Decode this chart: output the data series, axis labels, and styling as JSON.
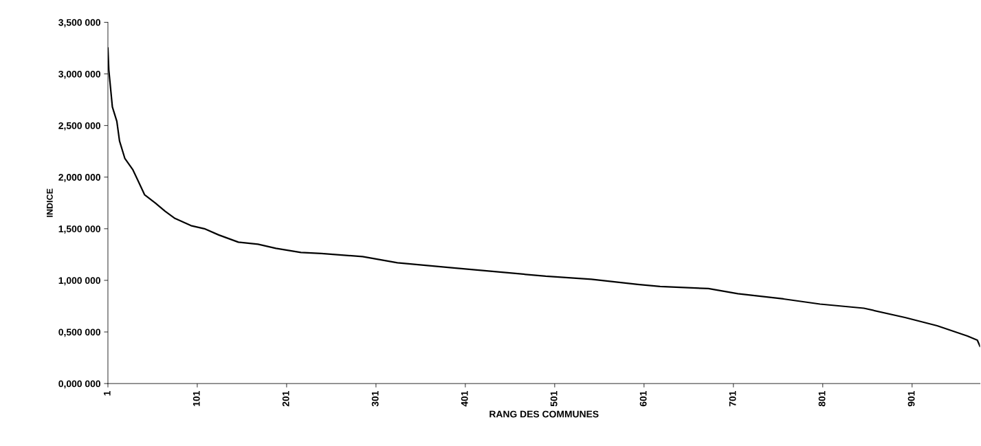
{
  "chart_data": {
    "type": "line",
    "xlabel": "RANG DES COMMUNES",
    "ylabel": "INDICE",
    "series": [
      {
        "color": "#000000",
        "x": [
          1,
          2,
          6,
          11,
          14,
          20,
          29,
          35,
          42,
          54,
          65,
          76,
          94,
          109,
          125,
          147,
          169,
          189,
          217,
          240,
          286,
          325,
          388,
          427,
          491,
          542,
          594,
          619,
          673,
          706,
          757,
          798,
          847,
          893,
          929,
          963,
          974,
          977
        ],
        "values": [
          3.25,
          3.04,
          2.68,
          2.54,
          2.35,
          2.18,
          2.07,
          1.96,
          1.83,
          1.75,
          1.67,
          1.6,
          1.53,
          1.5,
          1.44,
          1.37,
          1.35,
          1.31,
          1.27,
          1.26,
          1.23,
          1.17,
          1.12,
          1.09,
          1.04,
          1.01,
          0.96,
          0.94,
          0.92,
          0.87,
          0.82,
          0.77,
          0.73,
          0.64,
          0.56,
          0.46,
          0.42,
          0.36
        ]
      }
    ],
    "xlim": [
      1,
      977
    ],
    "xticks": [
      1,
      101,
      201,
      301,
      401,
      501,
      601,
      701,
      801,
      901
    ],
    "ylim": [
      0,
      3.5
    ],
    "yticks": [
      {
        "value": 0,
        "label": "0,000 000"
      },
      {
        "value": 0.5,
        "label": "0,500 000"
      },
      {
        "value": 1,
        "label": "1,000 000"
      },
      {
        "value": 1.5,
        "label": "1,500 000"
      },
      {
        "value": 2,
        "label": "2,000 000"
      },
      {
        "value": 2.5,
        "label": "2,500 000"
      },
      {
        "value": 3,
        "label": "3,000 000"
      },
      {
        "value": 3.5,
        "label": "3,500 000"
      }
    ],
    "grid": false,
    "legend": false,
    "marker": "none",
    "line_style": "solid"
  }
}
